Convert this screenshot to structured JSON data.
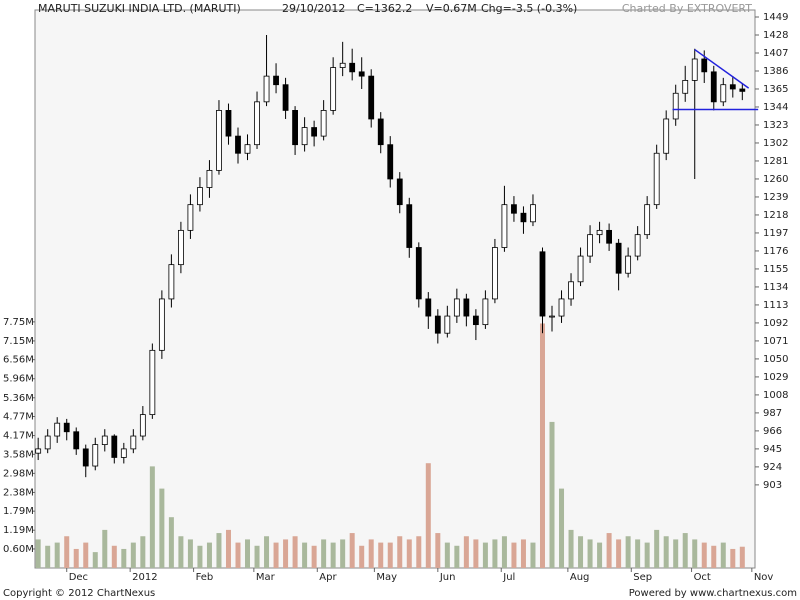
{
  "chart_data": {
    "type": "candlestick",
    "title": "MARUTI SUZUKI INDIA LTD. (MARUTI)",
    "header": [
      "29/10/2012",
      "C=1362.2",
      "V=0.67M",
      "Chg=-3.5 (-0.3%)"
    ],
    "credit": "Charted By EXTROVERT",
    "footer_left": "Copyright © 2012 ChartNexus",
    "footer_right": "Powered by www.chartnexus.com",
    "x": [
      0,
      3,
      6,
      9,
      12,
      15,
      18,
      21,
      24,
      27,
      30,
      33,
      36,
      39,
      42,
      45,
      48,
      51,
      54,
      57,
      60,
      63,
      66,
      69,
      72,
      75,
      78,
      81,
      84,
      87,
      90,
      93,
      96,
      99,
      102,
      105,
      108,
      111,
      114,
      117,
      120,
      123,
      126,
      129,
      132,
      135,
      138,
      141,
      144,
      147,
      150,
      153,
      156,
      159,
      162,
      165,
      168,
      171,
      174,
      177,
      180,
      183,
      186,
      189,
      192,
      195,
      198,
      201,
      204,
      207,
      210,
      213,
      216,
      219,
      222
    ],
    "open": [
      940,
      945,
      960,
      975,
      965,
      945,
      925,
      950,
      960,
      935,
      945,
      960,
      985,
      1060,
      1120,
      1160,
      1200,
      1230,
      1250,
      1270,
      1340,
      1310,
      1290,
      1300,
      1350,
      1380,
      1370,
      1340,
      1300,
      1320,
      1310,
      1340,
      1390,
      1395,
      1385,
      1380,
      1330,
      1300,
      1260,
      1230,
      1180,
      1120,
      1100,
      1080,
      1100,
      1120,
      1100,
      1090,
      1120,
      1180,
      1230,
      1220,
      1210,
      1175,
      1100,
      1100,
      1120,
      1140,
      1170,
      1195,
      1200,
      1185,
      1150,
      1170,
      1195,
      1230,
      1290,
      1330,
      1360,
      1375,
      1400,
      1385,
      1350,
      1370,
      1365
    ],
    "high": [
      958,
      968,
      982,
      980,
      970,
      950,
      958,
      968,
      962,
      952,
      968,
      995,
      1068,
      1130,
      1172,
      1210,
      1242,
      1262,
      1282,
      1352,
      1348,
      1320,
      1312,
      1362,
      1428,
      1395,
      1378,
      1345,
      1332,
      1328,
      1352,
      1402,
      1420,
      1412,
      1402,
      1388,
      1338,
      1310,
      1268,
      1238,
      1186,
      1128,
      1108,
      1112,
      1132,
      1126,
      1108,
      1130,
      1190,
      1252,
      1240,
      1228,
      1242,
      1180,
      1112,
      1130,
      1150,
      1180,
      1206,
      1210,
      1208,
      1190,
      1180,
      1205,
      1240,
      1300,
      1340,
      1370,
      1392,
      1412,
      1410,
      1392,
      1378,
      1380,
      1372
    ],
    "low": [
      932,
      940,
      952,
      955,
      938,
      912,
      920,
      942,
      928,
      928,
      940,
      955,
      980,
      1050,
      1110,
      1150,
      1190,
      1222,
      1238,
      1265,
      1300,
      1278,
      1282,
      1295,
      1345,
      1360,
      1330,
      1288,
      1292,
      1298,
      1305,
      1335,
      1380,
      1375,
      1365,
      1320,
      1290,
      1250,
      1220,
      1168,
      1110,
      1085,
      1068,
      1075,
      1092,
      1088,
      1072,
      1085,
      1115,
      1175,
      1210,
      1196,
      1205,
      1080,
      1082,
      1092,
      1112,
      1135,
      1162,
      1185,
      1176,
      1130,
      1145,
      1165,
      1190,
      1225,
      1282,
      1322,
      1350,
      1260,
      1372,
      1340,
      1345,
      1355,
      1352
    ],
    "close": [
      945,
      960,
      975,
      965,
      945,
      925,
      950,
      960,
      935,
      945,
      960,
      985,
      1060,
      1120,
      1160,
      1200,
      1230,
      1250,
      1270,
      1340,
      1310,
      1290,
      1300,
      1350,
      1380,
      1370,
      1340,
      1300,
      1320,
      1310,
      1340,
      1390,
      1395,
      1385,
      1380,
      1330,
      1300,
      1260,
      1230,
      1180,
      1120,
      1100,
      1080,
      1100,
      1120,
      1100,
      1090,
      1120,
      1180,
      1230,
      1220,
      1210,
      1230,
      1100,
      1100,
      1120,
      1140,
      1170,
      1195,
      1200,
      1185,
      1150,
      1170,
      1195,
      1230,
      1290,
      1330,
      1360,
      1375,
      1400,
      1385,
      1350,
      1370,
      1365,
      1362.2
    ],
    "volume": [
      0.9,
      0.7,
      0.8,
      1.0,
      0.6,
      0.8,
      0.5,
      1.2,
      0.7,
      0.6,
      0.8,
      1.0,
      3.2,
      2.5,
      1.6,
      1.0,
      0.9,
      0.7,
      0.8,
      1.1,
      1.2,
      0.8,
      0.9,
      0.7,
      1.0,
      0.8,
      0.9,
      1.0,
      0.8,
      0.7,
      0.9,
      0.8,
      0.9,
      1.1,
      0.7,
      0.9,
      0.8,
      0.8,
      1.0,
      0.9,
      1.0,
      3.3,
      1.1,
      0.8,
      0.7,
      1.0,
      0.9,
      0.8,
      0.9,
      1.0,
      0.8,
      0.9,
      0.8,
      7.7,
      4.6,
      2.5,
      1.2,
      1.0,
      0.9,
      0.8,
      1.1,
      0.9,
      1.0,
      0.9,
      0.8,
      1.2,
      1.0,
      0.9,
      1.1,
      0.9,
      0.8,
      0.7,
      0.8,
      0.6,
      0.67
    ],
    "xlim": [
      -1,
      226
    ],
    "xticks": [
      {
        "value": 9,
        "label": "Dec"
      },
      {
        "value": 29,
        "label": "2012"
      },
      {
        "value": 49,
        "label": "Feb"
      },
      {
        "value": 68,
        "label": "Mar"
      },
      {
        "value": 88,
        "label": "Apr"
      },
      {
        "value": 106,
        "label": "May"
      },
      {
        "value": 126,
        "label": "Jun"
      },
      {
        "value": 146,
        "label": "Jul"
      },
      {
        "value": 167,
        "label": "Aug"
      },
      {
        "value": 187,
        "label": "Sep"
      },
      {
        "value": 206,
        "label": "Oct"
      },
      {
        "value": 225,
        "label": "Nov"
      }
    ],
    "ylim": [
      806,
      1449
    ],
    "yticks": [
      1449,
      1428,
      1407,
      1386,
      1365,
      1344,
      1323,
      1302,
      1281,
      1260,
      1239,
      1218,
      1197,
      1176,
      1155,
      1134,
      1113,
      1092,
      1071,
      1050,
      1029,
      1008,
      987,
      966,
      945,
      924,
      903
    ],
    "y2lim": [
      0,
      17.35
    ],
    "y2ticks": [
      {
        "value": 0.6,
        "label": "0.60M"
      },
      {
        "value": 1.19,
        "label": "1.19M"
      },
      {
        "value": 1.79,
        "label": "1.79M"
      },
      {
        "value": 2.38,
        "label": "2.38M"
      },
      {
        "value": 2.98,
        "label": "2.98M"
      },
      {
        "value": 3.58,
        "label": "3.58M"
      },
      {
        "value": 4.17,
        "label": "4.17M"
      },
      {
        "value": 4.77,
        "label": "4.77M"
      },
      {
        "value": 5.36,
        "label": "5.36M"
      },
      {
        "value": 5.96,
        "label": "5.96M"
      },
      {
        "value": 6.56,
        "label": "6.56M"
      },
      {
        "value": 7.15,
        "label": "7.15M"
      },
      {
        "value": 7.75,
        "label": "7.75M"
      }
    ],
    "up_color": "#ffffff",
    "down_color": "#000000",
    "volume_up_color": "#a9b89c",
    "volume_down_color": "#d9a695",
    "trendlines": [
      {
        "x": [
          207,
          224
        ],
        "y": [
          1411,
          1366
        ],
        "color": "#2222dd"
      },
      {
        "x": [
          200,
          227
        ],
        "y": [
          1341,
          1341
        ],
        "color": "#2222dd"
      }
    ]
  }
}
